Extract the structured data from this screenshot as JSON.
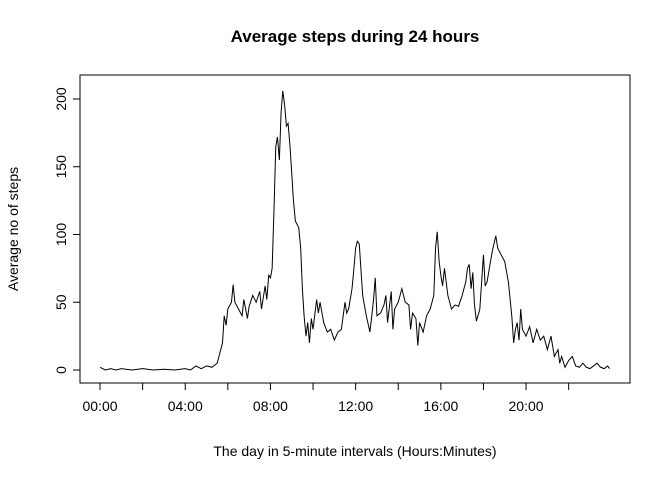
{
  "chart_data": {
    "type": "line",
    "title": "Average steps during 24 hours",
    "xlabel": "The day in 5-minute intervals (Hours:Minutes)",
    "ylabel": "Average no of steps",
    "color": "#000000",
    "xlim": [
      -0.94,
      24.88
    ],
    "ylim": [
      -9.6,
      217.7
    ],
    "yticks": [
      0,
      50,
      100,
      150,
      200
    ],
    "xticks": [
      {
        "value": 0,
        "label": "00:00"
      },
      {
        "value": 4,
        "label": "04:00"
      },
      {
        "value": 8,
        "label": "08:00"
      },
      {
        "value": 12,
        "label": "12:00"
      },
      {
        "value": 16,
        "label": "16:00"
      },
      {
        "value": 20,
        "label": "20:00"
      }
    ],
    "xminor_ticks": [
      2,
      6,
      10,
      14,
      18,
      22
    ],
    "x": [
      0,
      0.25,
      0.5,
      0.75,
      1,
      1.5,
      2,
      2.5,
      3,
      3.5,
      4,
      4.25,
      4.5,
      4.75,
      5,
      5.25,
      5.5,
      5.75,
      5.83,
      5.92,
      6.0,
      6.17,
      6.25,
      6.33,
      6.5,
      6.67,
      6.75,
      6.92,
      7.0,
      7.17,
      7.33,
      7.5,
      7.58,
      7.75,
      7.83,
      7.92,
      8.0,
      8.08,
      8.17,
      8.25,
      8.33,
      8.42,
      8.5,
      8.58,
      8.67,
      8.75,
      8.83,
      8.92,
      9.0,
      9.08,
      9.17,
      9.33,
      9.42,
      9.5,
      9.58,
      9.67,
      9.75,
      9.83,
      9.92,
      10.0,
      10.17,
      10.25,
      10.33,
      10.5,
      10.67,
      10.83,
      11.0,
      11.17,
      11.33,
      11.5,
      11.58,
      11.67,
      11.83,
      11.92,
      12.0,
      12.08,
      12.17,
      12.33,
      12.5,
      12.67,
      12.83,
      12.92,
      13.0,
      13.17,
      13.33,
      13.42,
      13.5,
      13.67,
      13.75,
      13.83,
      14.0,
      14.17,
      14.33,
      14.5,
      14.58,
      14.67,
      14.83,
      14.92,
      15.0,
      15.17,
      15.33,
      15.5,
      15.67,
      15.75,
      15.83,
      15.92,
      16.0,
      16.08,
      16.17,
      16.25,
      16.33,
      16.5,
      16.67,
      16.83,
      17.0,
      17.17,
      17.25,
      17.33,
      17.42,
      17.5,
      17.58,
      17.67,
      17.83,
      18.0,
      18.08,
      18.17,
      18.33,
      18.42,
      18.58,
      18.67,
      18.83,
      19.0,
      19.17,
      19.33,
      19.42,
      19.5,
      19.58,
      19.67,
      19.75,
      19.83,
      20.0,
      20.17,
      20.33,
      20.5,
      20.67,
      20.83,
      21.0,
      21.17,
      21.33,
      21.5,
      21.58,
      21.67,
      21.83,
      22.0,
      22.17,
      22.33,
      22.5,
      22.67,
      22.83,
      23.0,
      23.17,
      23.33,
      23.5,
      23.67,
      23.83,
      23.92
    ],
    "y": [
      2,
      0,
      1,
      0,
      1,
      0,
      1,
      0,
      0.5,
      0,
      1,
      0,
      3,
      1,
      3,
      2,
      5,
      20,
      40,
      33,
      45,
      50,
      63,
      50,
      45,
      40,
      52,
      38,
      47,
      55,
      50,
      58,
      45,
      62,
      52,
      70,
      68,
      75,
      120,
      165,
      172,
      155,
      190,
      206,
      195,
      180,
      182,
      165,
      145,
      125,
      110,
      105,
      90,
      60,
      40,
      25,
      35,
      20,
      38,
      30,
      52,
      42,
      50,
      35,
      28,
      30,
      22,
      28,
      30,
      50,
      42,
      45,
      60,
      75,
      90,
      95,
      93,
      55,
      40,
      28,
      50,
      68,
      40,
      42,
      48,
      55,
      35,
      58,
      30,
      45,
      50,
      60,
      50,
      48,
      30,
      42,
      38,
      18,
      35,
      28,
      40,
      45,
      55,
      90,
      102,
      80,
      70,
      62,
      75,
      65,
      55,
      45,
      48,
      47,
      55,
      65,
      75,
      78,
      60,
      72,
      48,
      36,
      45,
      85,
      62,
      65,
      80,
      88,
      99,
      90,
      85,
      80,
      65,
      40,
      20,
      30,
      35,
      22,
      45,
      30,
      25,
      32,
      20,
      30,
      22,
      25,
      15,
      25,
      10,
      15,
      5,
      10,
      2,
      7,
      10,
      3,
      2,
      5,
      2,
      1,
      3,
      5,
      2,
      1,
      3,
      1
    ]
  }
}
